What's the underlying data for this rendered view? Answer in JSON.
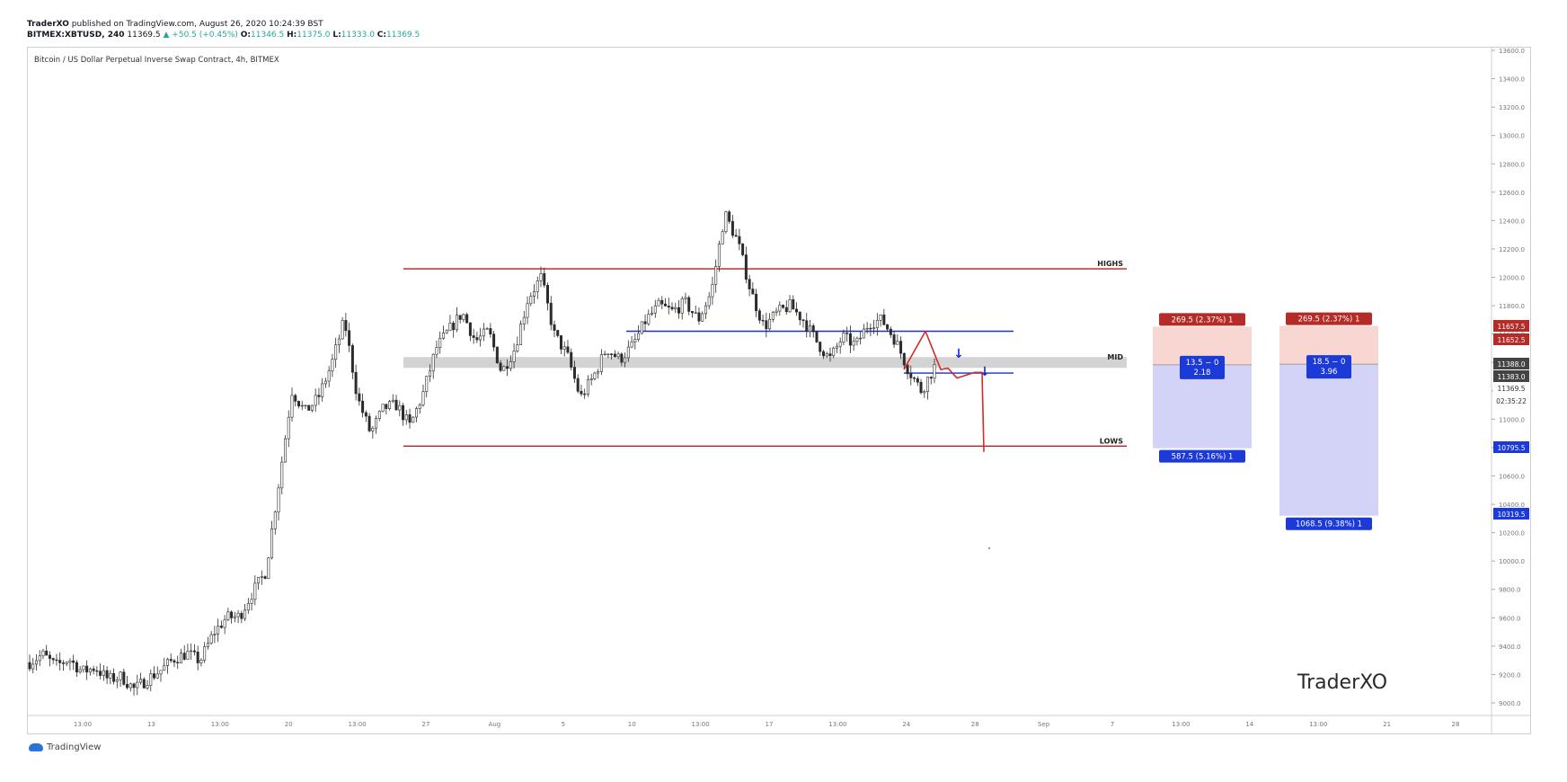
{
  "header": {
    "author": "TraderXO",
    "published_text": "published on TradingView.com, August 26, 2020 10:24:39 BST",
    "symbol_interval": "BITMEX:XBTUSD, 240",
    "last": "11369.5",
    "change": "+50.5 (+0.45%)",
    "open_label": "O:",
    "open": "11346.5",
    "high_label": "H:",
    "high": "11375.0",
    "low_label": "L:",
    "low": "11333.0",
    "close_label": "C:",
    "close": "11369.5"
  },
  "footer": {
    "brand": "TradingView"
  },
  "colors": {
    "level_red": "#b22222",
    "level_blue": "#1a2fd1",
    "mid_band": "#d3d3d3",
    "loss_zone": "#f8d7d3",
    "profit_zone": "#d2d3f7",
    "label_red": "#b52b27",
    "label_blue": "#1c3ad8",
    "candle": "#2b2b2b"
  },
  "chart_data": {
    "type": "candlestick",
    "title": "Bitcoin / US Dollar Perpetual Inverse Swap Contract, 4h, BITMEX",
    "watermark": "TraderXO",
    "ylim": [
      8900,
      13650
    ],
    "y_ticks": [
      "13600.0",
      "13400.0",
      "13200.0",
      "13000.0",
      "12800.0",
      "12600.0",
      "12400.0",
      "12200.0",
      "12000.0",
      "11800.0",
      "11600.0",
      "11400.0",
      "11200.0",
      "11000.0",
      "10800.0",
      "10600.0",
      "10400.0",
      "10200.0",
      "10000.0",
      "9800.0",
      "9600.0",
      "9400.0",
      "9200.0",
      "9000.0"
    ],
    "x_ticks": [
      "13:00",
      "13",
      "13:00",
      "20",
      "13:00",
      "27",
      "Aug",
      "5",
      "10",
      "13:00",
      "17",
      "13:00",
      "24",
      "28",
      "Sep",
      "7",
      "13:00",
      "14",
      "13:00",
      "21",
      "28"
    ],
    "price_path": [
      [
        9285,
        9340
      ],
      [
        9330,
        9260
      ],
      [
        9260,
        9310
      ],
      [
        9310,
        9220
      ],
      [
        9220,
        9250
      ],
      [
        9250,
        9165
      ],
      [
        9165,
        9185
      ],
      [
        9185,
        9095
      ],
      [
        9095,
        9170
      ],
      [
        9170,
        9230
      ],
      [
        9230,
        9310
      ],
      [
        9310,
        9350
      ],
      [
        9350,
        9295
      ],
      [
        9295,
        9490
      ],
      [
        9490,
        9600
      ],
      [
        9600,
        9610
      ],
      [
        9610,
        9780
      ],
      [
        9780,
        9925
      ],
      [
        9925,
        10550
      ],
      [
        10550,
        11200
      ],
      [
        11200,
        11050
      ],
      [
        11050,
        11150
      ],
      [
        11150,
        11380
      ],
      [
        11380,
        11700
      ],
      [
        11700,
        11150
      ],
      [
        11150,
        10900
      ],
      [
        10900,
        11080
      ],
      [
        11080,
        11100
      ],
      [
        11100,
        10950
      ],
      [
        10950,
        11180
      ],
      [
        11180,
        11500
      ],
      [
        11500,
        11630
      ],
      [
        11630,
        11750
      ],
      [
        11750,
        11550
      ],
      [
        11550,
        11620
      ],
      [
        11620,
        11330
      ],
      [
        11330,
        11500
      ],
      [
        11500,
        11850
      ],
      [
        11850,
        12000
      ],
      [
        12000,
        11600
      ],
      [
        11600,
        11450
      ],
      [
        11450,
        11150
      ],
      [
        11150,
        11300
      ],
      [
        11300,
        11500
      ],
      [
        11500,
        11420
      ],
      [
        11420,
        11520
      ],
      [
        11520,
        11700
      ],
      [
        11700,
        11800
      ],
      [
        11800,
        11760
      ],
      [
        11760,
        11820
      ],
      [
        11820,
        11700
      ],
      [
        11700,
        11900
      ],
      [
        11900,
        12450
      ],
      [
        12450,
        12250
      ],
      [
        12250,
        11900
      ],
      [
        11900,
        11650
      ],
      [
        11650,
        11750
      ],
      [
        11750,
        11800
      ],
      [
        11800,
        11700
      ],
      [
        11700,
        11550
      ],
      [
        11550,
        11420
      ],
      [
        11420,
        11580
      ],
      [
        11580,
        11520
      ],
      [
        11520,
        11680
      ],
      [
        11680,
        11700
      ],
      [
        11700,
        11560
      ],
      [
        11560,
        11350
      ],
      [
        11350,
        11200
      ],
      [
        11200,
        11369.5
      ]
    ],
    "levels": [
      {
        "label": "HIGHS",
        "price": 12060
      },
      {
        "label": "MID",
        "price": 11400
      },
      {
        "label": "LOWS",
        "price": 10810
      }
    ],
    "blue_lines": [
      11620,
      11325
    ],
    "projection": [
      [
        11350,
        11620,
        11350,
        11360,
        11290,
        11330,
        11330,
        10770
      ]
    ],
    "positions": [
      {
        "stop_label": "269.5 (2.37%) 1",
        "rr_line1": "13.5 − 0",
        "rr_line2": "2.18",
        "target_label": "587.5 (5.16%) 1",
        "entry": 11383,
        "stop": 11652.5,
        "target": 10795.5
      },
      {
        "stop_label": "269.5 (2.37%) 1",
        "rr_line1": "18.5 − 0",
        "rr_line2": "3.96",
        "target_label": "1068.5 (9.38%) 1",
        "entry": 11388,
        "stop": 11657.5,
        "target": 10319.5
      }
    ],
    "price_scale_labels": [
      {
        "text": "11657.5",
        "kind": "red"
      },
      {
        "text": "11652.5",
        "kind": "red"
      },
      {
        "text": "11388.0",
        "kind": "dark"
      },
      {
        "text": "11383.0",
        "kind": "dark"
      },
      {
        "text": "11369.5",
        "kind": "plain"
      },
      {
        "text": "02:35:22",
        "kind": "plain"
      },
      {
        "text": "10795.5",
        "kind": "blue"
      },
      {
        "text": "10319.5",
        "kind": "blue"
      }
    ]
  }
}
